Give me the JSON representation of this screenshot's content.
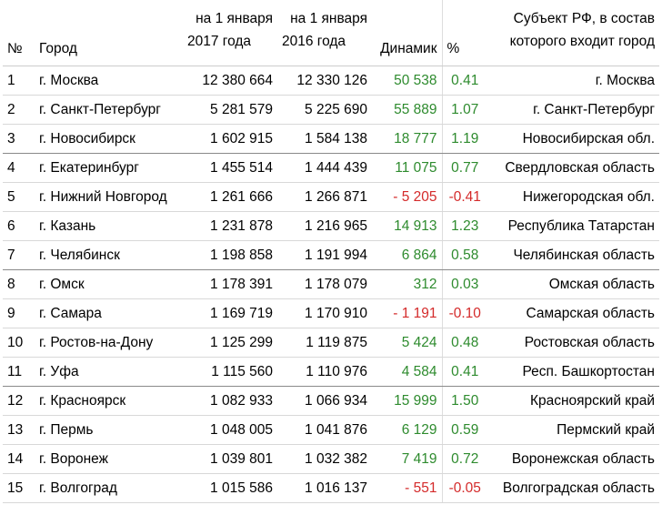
{
  "header": {
    "num": "№",
    "city": "Город",
    "y2017_line1": "на 1 января",
    "y2017_line2": "2017 года",
    "y2016_line1": "на 1 января",
    "y2016_line2": "2016 года",
    "dynamic": "Динамик",
    "pct": "%",
    "subject_line1": "Субъект РФ, в состав",
    "subject_line2": "которого входит город"
  },
  "rows": [
    {
      "n": "1",
      "city": "г. Москва",
      "y2017": "12 380 664",
      "y2016": "12 330 126",
      "dyn": "50 538",
      "pct": "0.41",
      "subject": "г. Москва",
      "trend": "pos"
    },
    {
      "n": "2",
      "city": "г. Санкт-Петербург",
      "y2017": "5 281 579",
      "y2016": "5 225 690",
      "dyn": "55 889",
      "pct": "1.07",
      "subject": "г. Санкт-Петербург",
      "trend": "pos"
    },
    {
      "n": "3",
      "city": "г. Новосибирск",
      "y2017": "1 602 915",
      "y2016": "1 584 138",
      "dyn": "18 777",
      "pct": "1.19",
      "subject": "Новосибирская обл.",
      "trend": "pos"
    },
    {
      "n": "4",
      "city": "г. Екатеринбург",
      "y2017": "1 455 514",
      "y2016": "1 444 439",
      "dyn": "11 075",
      "pct": "0.77",
      "subject": "Свердловская область",
      "trend": "pos"
    },
    {
      "n": "5",
      "city": "г. Нижний Новгород",
      "y2017": "1 261 666",
      "y2016": "1 266 871",
      "dyn": "- 5 205",
      "pct": "-0.41",
      "subject": "Нижегородская обл.",
      "trend": "neg"
    },
    {
      "n": "6",
      "city": "г. Казань",
      "y2017": "1 231 878",
      "y2016": "1 216 965",
      "dyn": "14 913",
      "pct": "1.23",
      "subject": "Республика Татарстан",
      "trend": "pos"
    },
    {
      "n": "7",
      "city": "г. Челябинск",
      "y2017": "1 198 858",
      "y2016": "1 191 994",
      "dyn": "6 864",
      "pct": "0.58",
      "subject": "Челябинская область",
      "trend": "pos"
    },
    {
      "n": "8",
      "city": "г. Омск",
      "y2017": "1 178 391",
      "y2016": "1 178 079",
      "dyn": "312",
      "pct": "0.03",
      "subject": "Омская область",
      "trend": "pos"
    },
    {
      "n": "9",
      "city": "г. Самара",
      "y2017": "1 169 719",
      "y2016": "1 170 910",
      "dyn": "- 1 191",
      "pct": "-0.10",
      "subject": "Самарская область",
      "trend": "neg"
    },
    {
      "n": "10",
      "city": "г. Ростов-на-Дону",
      "y2017": "1 125 299",
      "y2016": "1 119 875",
      "dyn": "5 424",
      "pct": "0.48",
      "subject": "Ростовская область",
      "trend": "pos"
    },
    {
      "n": "11",
      "city": "г. Уфа",
      "y2017": "1 115 560",
      "y2016": "1 110 976",
      "dyn": "4 584",
      "pct": "0.41",
      "subject": "Респ. Башкортостан",
      "trend": "pos"
    },
    {
      "n": "12",
      "city": "г. Красноярск",
      "y2017": "1 082 933",
      "y2016": "1 066 934",
      "dyn": "15 999",
      "pct": "1.50",
      "subject": "Красноярский край",
      "trend": "pos"
    },
    {
      "n": "13",
      "city": "г. Пермь",
      "y2017": "1 048 005",
      "y2016": "1 041 876",
      "dyn": "6 129",
      "pct": "0.59",
      "subject": "Пермский край",
      "trend": "pos"
    },
    {
      "n": "14",
      "city": "г. Воронеж",
      "y2017": "1 039 801",
      "y2016": "1 032 382",
      "dyn": "7 419",
      "pct": "0.72",
      "subject": "Воронежская область",
      "trend": "pos"
    },
    {
      "n": "15",
      "city": "г. Волгоград",
      "y2017": "1 015 586",
      "y2016": "1 016 137",
      "dyn": "- 551",
      "pct": "-0.05",
      "subject": "Волгоградская область",
      "trend": "neg"
    }
  ],
  "colors": {
    "positive": "#2e8b2e",
    "negative": "#d42a2a"
  }
}
